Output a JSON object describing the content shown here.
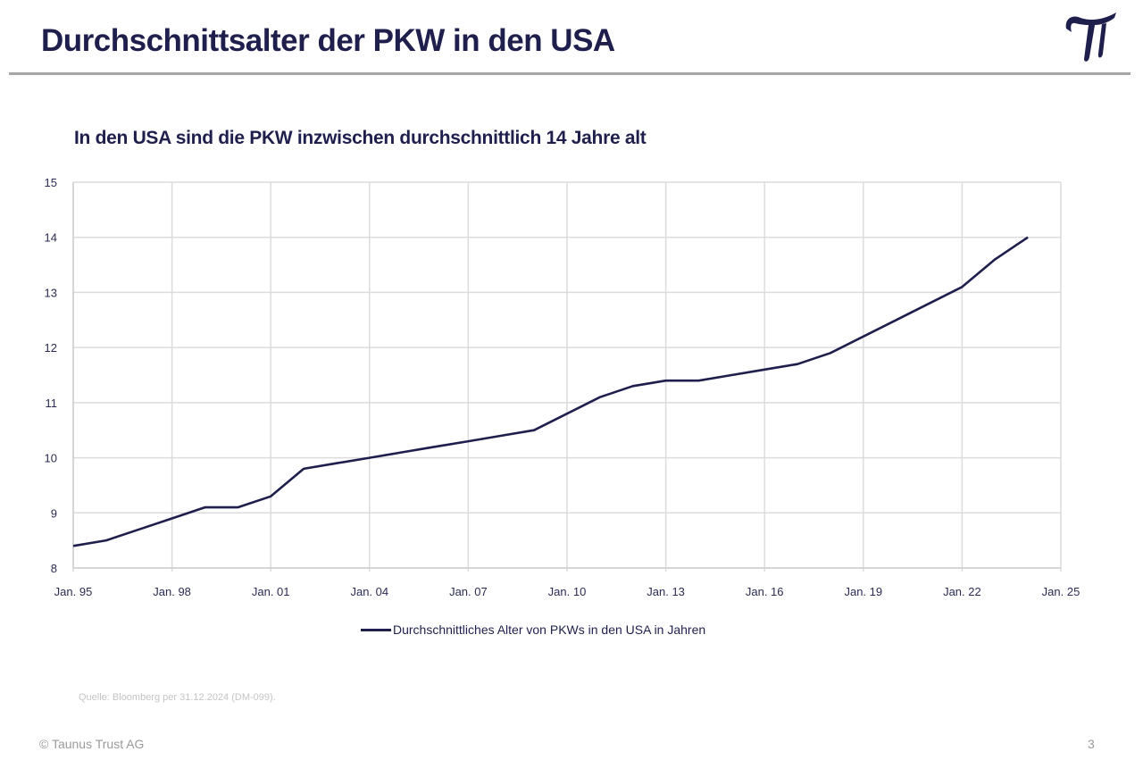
{
  "header": {
    "title": "Durchschnittsalter der PKW in den USA",
    "logo_icon": "pi-logo-icon",
    "brand_color": "#1f1f4d"
  },
  "chart_data": {
    "type": "line",
    "title": "In den USA sind die PKW inzwischen durchschnittlich 14 Jahre alt",
    "xlabel": "",
    "ylabel": "",
    "xlim": [
      1995,
      2025
    ],
    "ylim": [
      8,
      15
    ],
    "grid": true,
    "legend_position": "bottom-center",
    "x_ticks": [
      1995,
      1998,
      2001,
      2004,
      2007,
      2010,
      2013,
      2016,
      2019,
      2022,
      2025
    ],
    "x_tick_labels": [
      "Jan. 95",
      "Jan. 98",
      "Jan. 01",
      "Jan. 04",
      "Jan. 07",
      "Jan. 10",
      "Jan. 13",
      "Jan. 16",
      "Jan. 19",
      "Jan. 22",
      "Jan. 25"
    ],
    "y_ticks": [
      8,
      9,
      10,
      11,
      12,
      13,
      14,
      15
    ],
    "y_tick_labels": [
      "8",
      "9",
      "10",
      "11",
      "12",
      "13",
      "14",
      "15"
    ],
    "x": [
      1995,
      1996,
      1997,
      1998,
      1999,
      2000,
      2001,
      2002,
      2003,
      2004,
      2005,
      2006,
      2007,
      2008,
      2009,
      2010,
      2011,
      2012,
      2013,
      2014,
      2015,
      2016,
      2017,
      2018,
      2019,
      2020,
      2021,
      2022,
      2023,
      2024
    ],
    "series": [
      {
        "name": "Durchschnittliches Alter von PKWs in den USA in Jahren",
        "color": "#1f1f4d",
        "values": [
          8.4,
          8.5,
          8.7,
          8.9,
          9.1,
          9.1,
          9.3,
          9.8,
          9.9,
          10.0,
          10.1,
          10.2,
          10.3,
          10.4,
          10.5,
          10.8,
          11.1,
          11.3,
          11.4,
          11.4,
          11.5,
          11.6,
          11.7,
          11.9,
          12.2,
          12.5,
          12.8,
          13.1,
          13.6,
          14.0
        ]
      }
    ]
  },
  "footer": {
    "source": "Quelle: Bloomberg per 31.12.2024 (DM-099).",
    "copyright": "© Taunus Trust AG",
    "page_number": "3"
  }
}
